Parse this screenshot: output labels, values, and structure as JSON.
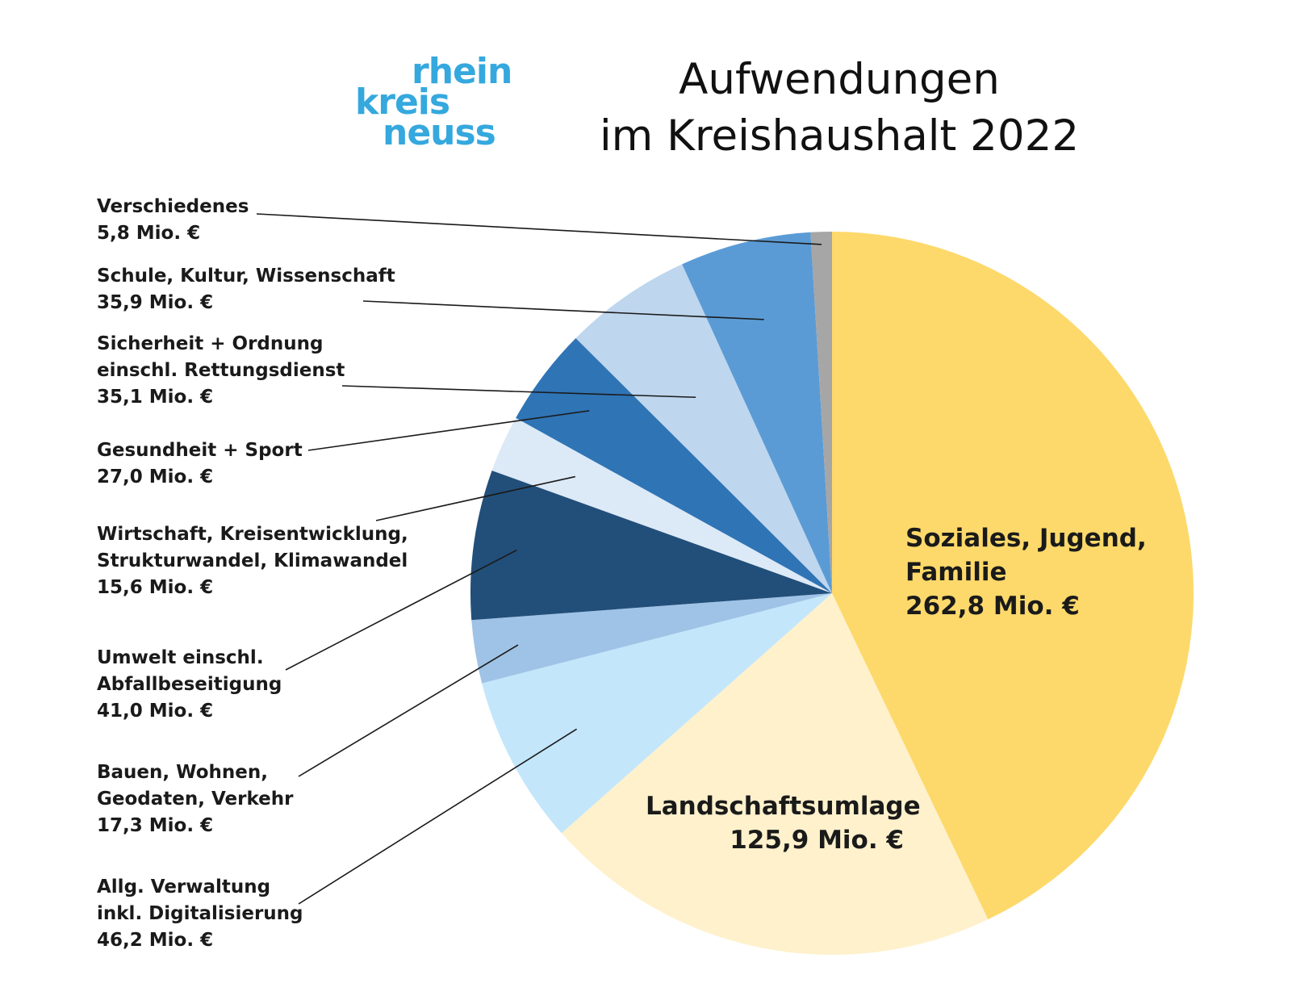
{
  "logo": {
    "line1": "rhein",
    "line2": "kreis",
    "line3": "neuss"
  },
  "chart_data": {
    "type": "pie",
    "title": "Aufwendungen im Kreishaushalt 2022",
    "title_lines": [
      "Aufwendungen",
      "im Kreishaushalt 2022"
    ],
    "unit": "Mio. €",
    "slices": [
      {
        "label": "Soziales, Jugend, Familie",
        "label_lines": [
          "Soziales, Jugend,",
          "Familie"
        ],
        "value": 262.8,
        "value_text": "262,8 Mio. €",
        "color": "#fdd96b"
      },
      {
        "label": "Landschaftsumlage",
        "label_lines": [
          "Landschaftsumlage"
        ],
        "value": 125.9,
        "value_text": "125,9 Mio. €",
        "color": "#fef1cc"
      },
      {
        "label": "Allg. Verwaltung inkl. Digitalisierung",
        "label_lines": [
          "Allg. Verwaltung",
          "inkl. Digitalisierung"
        ],
        "value": 46.2,
        "value_text": "46,2 Mio. €",
        "color": "#c3e6fa"
      },
      {
        "label": "Bauen, Wohnen, Geodaten, Verkehr",
        "label_lines": [
          "Bauen, Wohnen,",
          "Geodaten, Verkehr"
        ],
        "value": 17.3,
        "value_text": "17,3 Mio. €",
        "color": "#9fc3e6"
      },
      {
        "label": "Umwelt einschl. Abfallbeseitigung",
        "label_lines": [
          "Umwelt einschl.",
          "Abfallbeseitigung"
        ],
        "value": 41.0,
        "value_text": "41,0 Mio. €",
        "color": "#224f7a"
      },
      {
        "label": "Wirtschaft, Kreisentwicklung, Strukturwandel, Klimawandel",
        "label_lines": [
          "Wirtschaft, Kreisentwicklung,",
          "Strukturwandel, Klimawandel"
        ],
        "value": 15.6,
        "value_text": "15,6 Mio. €",
        "color": "#dce9f6"
      },
      {
        "label": "Gesundheit + Sport",
        "label_lines": [
          "Gesundheit + Sport"
        ],
        "value": 27.0,
        "value_text": "27,0 Mio. €",
        "color": "#2f74b5"
      },
      {
        "label": "Sicherheit + Ordnung einschl. Rettungsdienst",
        "label_lines": [
          "Sicherheit + Ordnung",
          "einschl. Rettungsdienst"
        ],
        "value": 35.1,
        "value_text": "35,1 Mio. €",
        "color": "#bed6ee"
      },
      {
        "label": "Schule, Kultur, Wissenschaft",
        "label_lines": [
          "Schule, Kultur, Wissenschaft"
        ],
        "value": 35.9,
        "value_text": "35,9 Mio. €",
        "color": "#5b9bd5"
      },
      {
        "label": "Verschiedenes",
        "label_lines": [
          "Verschiedenes"
        ],
        "value": 5.8,
        "value_text": "5,8 Mio. €",
        "color": "#a6a6a6"
      }
    ]
  }
}
